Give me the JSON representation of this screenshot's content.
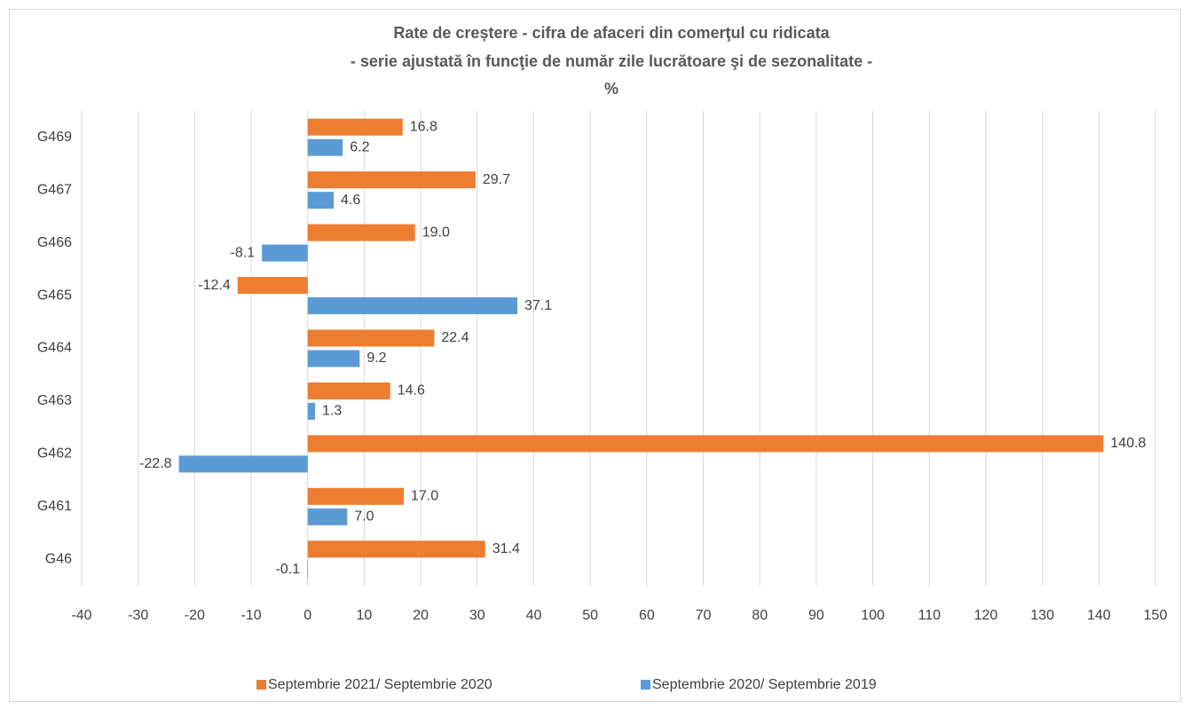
{
  "chart_data": {
    "type": "hbar",
    "title": "Rate de creștere - cifra de afaceri din comerţul cu ridicata",
    "subtitle": "- serie ajustată în funcţie de număr zile lucrătoare şi de sezonalitate -",
    "unit": "%",
    "categories": [
      "G46",
      "G461",
      "G462",
      "G463",
      "G464",
      "G465",
      "G466",
      "G467",
      "G469"
    ],
    "series": [
      {
        "name": "Septembrie 2021/ Septembrie 2020",
        "color": "#ed7d31",
        "values": [
          31.4,
          17.0,
          140.8,
          14.6,
          22.4,
          -12.4,
          19.0,
          29.7,
          16.8
        ],
        "value_labels": [
          "31.4",
          "17.0",
          "140.8",
          "14.6",
          "22.4",
          "-12.4",
          "19.0",
          "29.7",
          "16.8"
        ]
      },
      {
        "name": "Septembrie 2020/ Septembrie 2019",
        "color": "#5b9bd5",
        "values": [
          -0.1,
          7.0,
          -22.8,
          1.3,
          9.2,
          37.1,
          -8.1,
          4.6,
          6.2
        ],
        "value_labels": [
          "-0.1",
          "7.0",
          "-22.8",
          "1.3",
          "9.2",
          "37.1",
          "-8.1",
          "4.6",
          "6.2"
        ]
      }
    ],
    "xlim": [
      -40,
      150
    ],
    "xticks": [
      -40,
      -30,
      -20,
      -10,
      0,
      10,
      20,
      30,
      40,
      50,
      60,
      70,
      80,
      90,
      100,
      110,
      120,
      130,
      140,
      150
    ],
    "grid": true,
    "legend": "bottom"
  }
}
